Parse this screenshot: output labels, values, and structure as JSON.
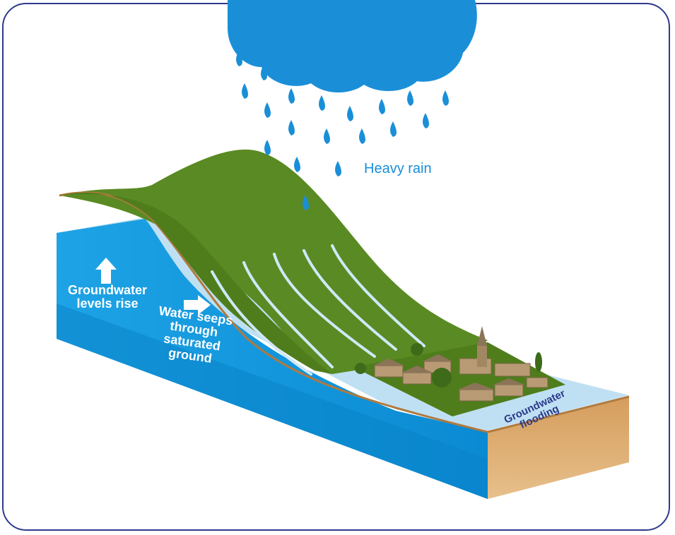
{
  "labels": {
    "heavy_rain": "Heavy rain",
    "levels_rise": [
      "Groundwater",
      "levels rise"
    ],
    "seeps": [
      "Water seeps",
      "through",
      "saturated",
      "ground"
    ],
    "flooding": [
      "Groundwater",
      "flooding"
    ]
  },
  "colors": {
    "frame": "#2e3a8c",
    "cloud": "#1a8fd8",
    "water": "#0f97dc",
    "water_light": "#bfe0f3",
    "grass": "#5a8a23",
    "soil": "#c8945a",
    "label_blue": "#2c3a8a"
  },
  "icons": [
    "cloud-icon",
    "raindrop-icon",
    "up-arrow-icon",
    "right-arrow-icon",
    "village-icon",
    "church-icon"
  ]
}
